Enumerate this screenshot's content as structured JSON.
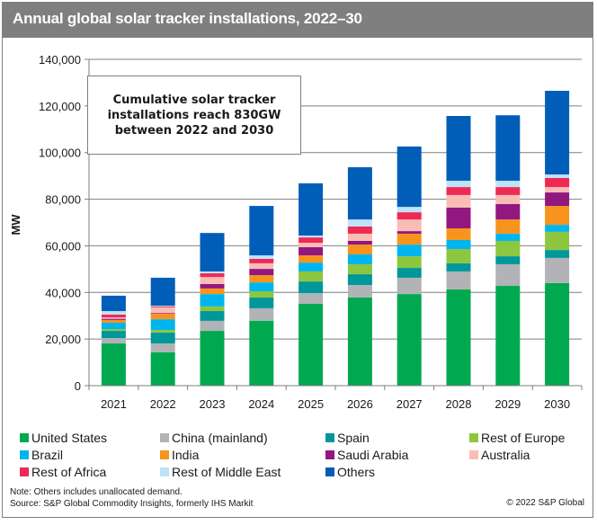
{
  "header": {
    "title": "Annual global solar tracker installations, 2022–30"
  },
  "annotation": {
    "text": "Cumulative solar tracker\ninstallations reach 830GW\nbetween 2022 and 2030"
  },
  "footer": {
    "note": "Note: Others includes unallocated demand.",
    "source": "Source: S&P Global Commodity Insights, formerly IHS Markit",
    "copyright": "© 2022 S&P Global"
  },
  "chart_data": {
    "type": "bar",
    "stacked": true,
    "title": "Annual global solar tracker installations, 2022–30",
    "xlabel": "",
    "ylabel": "MW",
    "ylim": [
      0,
      140000
    ],
    "yticks": [
      0,
      20000,
      40000,
      60000,
      80000,
      100000,
      120000,
      140000
    ],
    "ytick_labels": [
      "0",
      "20,000",
      "40,000",
      "60,000",
      "80,000",
      "100,000",
      "120,000",
      "140,000"
    ],
    "grid": true,
    "legend_position": "bottom",
    "categories": [
      "2021",
      "2022",
      "2023",
      "2024",
      "2025",
      "2026",
      "2027",
      "2028",
      "2029",
      "2030"
    ],
    "series": [
      {
        "name": "United States",
        "color": "#00a94f",
        "values": [
          18100,
          14300,
          23500,
          27800,
          35100,
          37800,
          39300,
          41300,
          42800,
          44000
        ]
      },
      {
        "name": "China (mainland)",
        "color": "#b1b3b6",
        "values": [
          2300,
          3800,
          4300,
          5400,
          4600,
          5400,
          7000,
          7700,
          9300,
          10800
        ]
      },
      {
        "name": "Spain",
        "color": "#00979a",
        "values": [
          3100,
          4700,
          4200,
          4600,
          5000,
          4600,
          4200,
          3500,
          3400,
          3400
        ]
      },
      {
        "name": "Rest of Europe",
        "color": "#8dc63f",
        "values": [
          800,
          1100,
          2000,
          2700,
          4300,
          4300,
          5000,
          6100,
          6600,
          7800
        ]
      },
      {
        "name": "Brazil",
        "color": "#00b5ef",
        "values": [
          2700,
          4600,
          5300,
          3800,
          3800,
          4200,
          5000,
          3900,
          3100,
          3000
        ]
      },
      {
        "name": "India",
        "color": "#f7941d",
        "values": [
          1200,
          2400,
          2400,
          3100,
          3100,
          4200,
          4700,
          5000,
          6100,
          8100
        ]
      },
      {
        "name": "Saudi Arabia",
        "color": "#92177f",
        "values": [
          500,
          300,
          1900,
          2700,
          3500,
          1600,
          1100,
          8900,
          6600,
          5800
        ]
      },
      {
        "name": "Australia",
        "color": "#f9bdb6",
        "values": [
          600,
          2400,
          3000,
          2400,
          1900,
          3100,
          5000,
          5400,
          3900,
          2300
        ]
      },
      {
        "name": "Rest of Africa",
        "color": "#ee2a54",
        "values": [
          1200,
          400,
          1600,
          1900,
          2300,
          3100,
          3100,
          3400,
          3400,
          3900
        ]
      },
      {
        "name": "Rest of Middle East",
        "color": "#bde3f8",
        "values": [
          1500,
          300,
          800,
          1500,
          800,
          3000,
          2300,
          2700,
          2700,
          1500
        ]
      },
      {
        "name": "Others",
        "color": "#005eb8",
        "values": [
          6600,
          12000,
          16500,
          21200,
          22400,
          22400,
          25900,
          27800,
          28100,
          35900
        ]
      }
    ],
    "totals": [
      38600,
      46300,
      65500,
      77100,
      86800,
      93700,
      102600,
      115700,
      116000,
      126500
    ]
  }
}
